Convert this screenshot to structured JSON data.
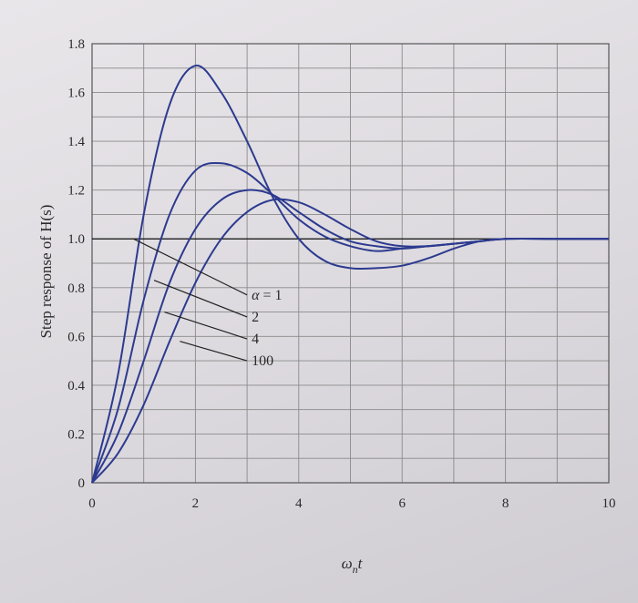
{
  "chart_data": {
    "type": "line",
    "xlabel": "ω",
    "xlabel_sub": "n",
    "xlabel_suffix": "t",
    "ylabel": "Step response of H(s)",
    "xlim": [
      0,
      10
    ],
    "ylim": [
      0,
      1.8
    ],
    "xticks": [
      0,
      2,
      4,
      6,
      8,
      10
    ],
    "yticks": [
      0,
      0.2,
      0.4,
      0.6,
      0.8,
      1.0,
      1.2,
      1.4,
      1.6,
      1.8
    ],
    "ytick_labels": [
      "0",
      "0.2",
      "0.4",
      "0.6",
      "0.8",
      "1.0",
      "1.2",
      "1.4",
      "1.6",
      "1.8"
    ],
    "x_minor_step": 1,
    "y_minor_step": 0.1,
    "reference_line": 1.0,
    "grid": true,
    "series": [
      {
        "name": "α = 1",
        "x": [
          0,
          0.5,
          1,
          1.5,
          2,
          2.5,
          3,
          3.5,
          4,
          4.5,
          5,
          5.5,
          6,
          6.5,
          7,
          7.5,
          8,
          9,
          10
        ],
        "y": [
          0,
          0.44,
          1.1,
          1.55,
          1.71,
          1.6,
          1.4,
          1.17,
          1.0,
          0.91,
          0.88,
          0.88,
          0.89,
          0.92,
          0.96,
          0.99,
          1.0,
          1.0,
          1.0
        ]
      },
      {
        "name": "2",
        "x": [
          0,
          0.5,
          1,
          1.5,
          2,
          2.5,
          3,
          3.5,
          4,
          4.5,
          5,
          5.5,
          6,
          6.5,
          7,
          7.5,
          8,
          9,
          10
        ],
        "y": [
          0,
          0.3,
          0.75,
          1.1,
          1.28,
          1.31,
          1.27,
          1.18,
          1.08,
          1.01,
          0.97,
          0.95,
          0.96,
          0.97,
          0.98,
          0.99,
          1.0,
          1.0,
          1.0
        ]
      },
      {
        "name": "4",
        "x": [
          0,
          0.5,
          1,
          1.5,
          2,
          2.5,
          3,
          3.5,
          4,
          4.5,
          5,
          5.5,
          6,
          6.5,
          7,
          7.5,
          8,
          9,
          10
        ],
        "y": [
          0,
          0.2,
          0.5,
          0.82,
          1.04,
          1.16,
          1.2,
          1.18,
          1.11,
          1.04,
          0.99,
          0.97,
          0.96,
          0.97,
          0.98,
          0.99,
          1.0,
          1.0,
          1.0
        ]
      },
      {
        "name": "100",
        "x": [
          0,
          0.5,
          1,
          1.5,
          2,
          2.5,
          3,
          3.5,
          4,
          4.5,
          5,
          5.5,
          6,
          6.5,
          7,
          7.5,
          8,
          9,
          10
        ],
        "y": [
          0,
          0.12,
          0.32,
          0.58,
          0.82,
          1.0,
          1.11,
          1.16,
          1.15,
          1.1,
          1.04,
          0.99,
          0.97,
          0.97,
          0.98,
          0.99,
          1.0,
          1.0,
          1.0
        ]
      }
    ],
    "annotations": [
      {
        "prefix": "α",
        "text": " = 1",
        "series": 0,
        "from": [
          0.8,
          1.0
        ],
        "to": [
          3.0,
          0.77
        ]
      },
      {
        "prefix": "",
        "text": "2",
        "series": 1,
        "from": [
          1.2,
          0.83
        ],
        "to": [
          3.0,
          0.68
        ]
      },
      {
        "prefix": "",
        "text": "4",
        "series": 2,
        "from": [
          1.4,
          0.7
        ],
        "to": [
          3.0,
          0.59
        ]
      },
      {
        "prefix": "",
        "text": "100",
        "series": 3,
        "from": [
          1.7,
          0.58
        ],
        "to": [
          3.0,
          0.5
        ]
      }
    ]
  }
}
